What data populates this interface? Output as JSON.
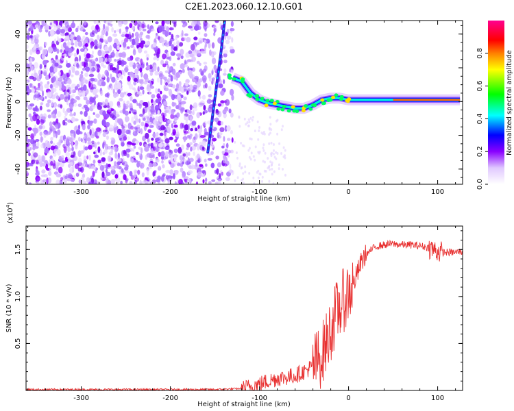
{
  "title": "C2E1.2023.060.12.10.G01",
  "chart_data": [
    {
      "type": "heatmap",
      "xlabel": "Height of straight line (km)",
      "ylabel": "Frequency (Hz)",
      "xlim": [
        -362,
        128
      ],
      "ylim": [
        -49,
        48
      ],
      "x_ticks": [
        -300,
        -200,
        -100,
        0,
        100
      ],
      "x_tick_labels": [
        "-300",
        "-200",
        "-100",
        "0",
        "100"
      ],
      "y_ticks": [
        -40,
        -20,
        0,
        20,
        40
      ],
      "y_tick_labels": [
        "-40",
        "-20",
        "0",
        "20",
        "40"
      ],
      "colorbar": {
        "label": "Normalized spectral amplitude",
        "range": [
          0,
          1
        ],
        "ticks": [
          0.0,
          0.2,
          0.4,
          0.6,
          0.8
        ],
        "tick_labels": [
          "0.0",
          "0.2",
          "0.4",
          "0.6",
          "0.8"
        ],
        "colors": [
          "#ffffff",
          "#8a00ff",
          "#0000ff",
          "#00ffff",
          "#00ff00",
          "#ffff00",
          "#ff8000",
          "#ff0000",
          "#ff00a0"
        ]
      },
      "ridge": {
        "x": [
          -130,
          -120,
          -110,
          -100,
          -90,
          -80,
          -70,
          -60,
          -50,
          -40,
          -30,
          -20,
          -10,
          0,
          25,
          50,
          75,
          100,
          125
        ],
        "y": [
          14,
          12,
          5,
          1,
          -1,
          -2,
          -3,
          -4,
          -4,
          -2,
          1,
          2,
          2,
          1,
          1,
          1,
          1,
          1,
          1
        ]
      },
      "steep_trace": {
        "x": [
          -158,
          -153,
          -148,
          -143,
          -139
        ],
        "y": [
          -30,
          -10,
          10,
          30,
          48
        ]
      }
    },
    {
      "type": "line",
      "xlabel": "Height of straight line (km)",
      "ylabel": "SNR (10 * v/v)",
      "y_multiplier_label": "(x10",
      "y_multiplier_exp": "4",
      "xlim": [
        -362,
        128
      ],
      "ylim": [
        0,
        1.75
      ],
      "x_ticks": [
        -300,
        -200,
        -100,
        0,
        100
      ],
      "x_tick_labels": [
        "-300",
        "-200",
        "-100",
        "0",
        "100"
      ],
      "y_ticks": [
        0.5,
        1.0,
        1.5
      ],
      "y_tick_labels": [
        "0.5",
        "1.0",
        "1.5"
      ],
      "series": [
        {
          "color": "#e83030",
          "x": [
            -362,
            -300,
            -200,
            -150,
            -120,
            -110,
            -100,
            -90,
            -80,
            -70,
            -60,
            -50,
            -40,
            -30,
            -25,
            -20,
            -15,
            -10,
            -5,
            0,
            5,
            10,
            15,
            20,
            30,
            40,
            50,
            60,
            70,
            80,
            90,
            95,
            100,
            105,
            110,
            120,
            128
          ],
          "y": [
            0.01,
            0.01,
            0.01,
            0.01,
            0.02,
            0.04,
            0.07,
            0.1,
            0.13,
            0.14,
            0.16,
            0.2,
            0.26,
            0.38,
            0.5,
            0.65,
            0.8,
            0.88,
            0.97,
            1.05,
            1.12,
            1.25,
            1.38,
            1.45,
            1.53,
            1.55,
            1.56,
            1.55,
            1.55,
            1.54,
            1.52,
            1.5,
            1.48,
            1.47,
            1.47,
            1.47,
            1.48
          ]
        }
      ]
    }
  ]
}
